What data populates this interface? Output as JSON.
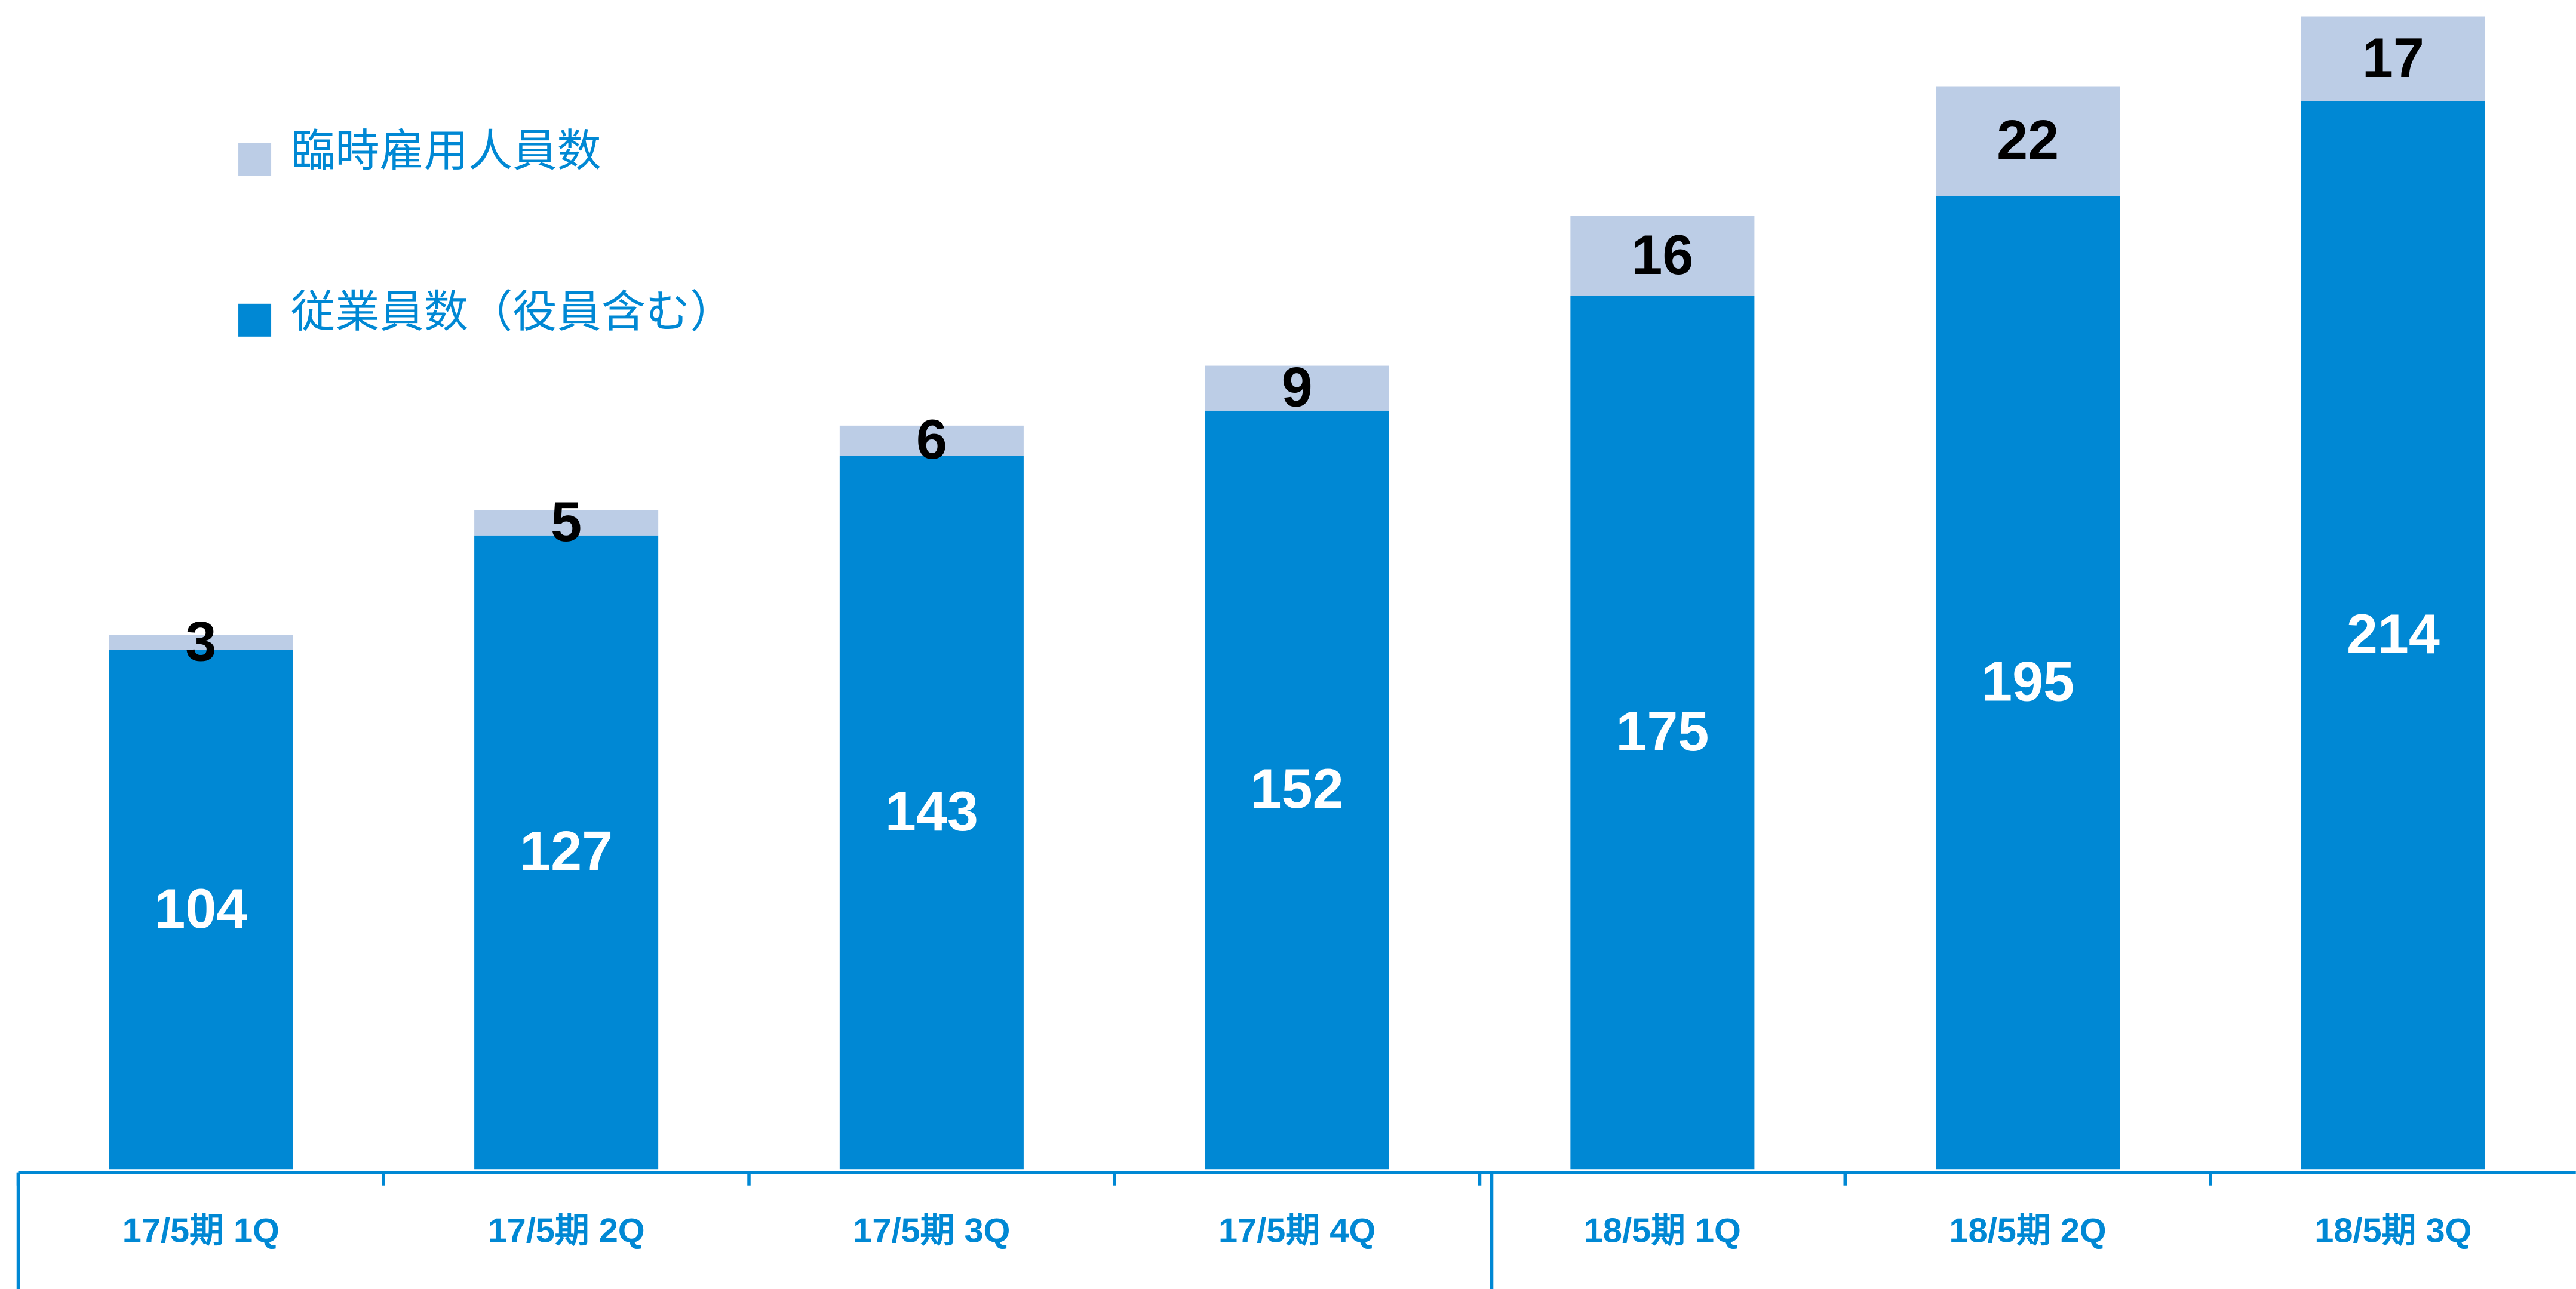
{
  "chart_data": {
    "type": "bar",
    "stacked": true,
    "categories": [
      "17/5期 1Q",
      "17/5期 2Q",
      "17/5期 3Q",
      "17/5期 4Q",
      "18/5期 1Q",
      "18/5期 2Q",
      "18/5期 3Q"
    ],
    "series": [
      {
        "name": "従業員数（役員含む）",
        "color": "#0088d4",
        "values": [
          104,
          127,
          143,
          152,
          175,
          195,
          214
        ]
      },
      {
        "name": "臨時雇用人員数",
        "color": "#bccde6",
        "values": [
          3,
          5,
          6,
          9,
          16,
          22,
          17
        ]
      }
    ],
    "ylim": [
      0,
      231
    ],
    "legend": "upper left"
  }
}
